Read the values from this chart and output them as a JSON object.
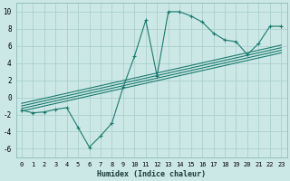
{
  "xlabel": "Humidex (Indice chaleur)",
  "bg_color": "#cce8e6",
  "grid_color": "#aad0cd",
  "line_color": "#1a7a6e",
  "xlim": [
    -0.5,
    23.5
  ],
  "ylim": [
    -7,
    11
  ],
  "xticks": [
    0,
    1,
    2,
    3,
    4,
    5,
    6,
    7,
    8,
    9,
    10,
    11,
    12,
    13,
    14,
    15,
    16,
    17,
    18,
    19,
    20,
    21,
    22,
    23
  ],
  "yticks": [
    -6,
    -4,
    -2,
    0,
    2,
    4,
    6,
    8,
    10
  ],
  "data_x": [
    0,
    1,
    2,
    3,
    4,
    5,
    6,
    7,
    8,
    9,
    10,
    11,
    12,
    13,
    14,
    15,
    16,
    17,
    18,
    19,
    20,
    21,
    22,
    23
  ],
  "data_y": [
    -1.5,
    -1.8,
    -1.7,
    -1.4,
    -1.2,
    -3.5,
    -5.8,
    -4.5,
    -3.0,
    1.2,
    4.8,
    9.0,
    2.5,
    10.0,
    10.0,
    9.5,
    8.8,
    7.5,
    6.7,
    6.5,
    5.0,
    6.3,
    8.3,
    8.3
  ],
  "reg_lines": [
    {
      "x": [
        0,
        23
      ],
      "y": [
        -1.6,
        5.2
      ]
    },
    {
      "x": [
        0,
        23
      ],
      "y": [
        -1.3,
        5.5
      ]
    },
    {
      "x": [
        0,
        23
      ],
      "y": [
        -1.0,
        5.8
      ]
    },
    {
      "x": [
        0,
        23
      ],
      "y": [
        -0.7,
        6.1
      ]
    }
  ],
  "x_tick_fontsize": 5.0,
  "y_tick_fontsize": 5.5,
  "xlabel_fontsize": 6.0
}
